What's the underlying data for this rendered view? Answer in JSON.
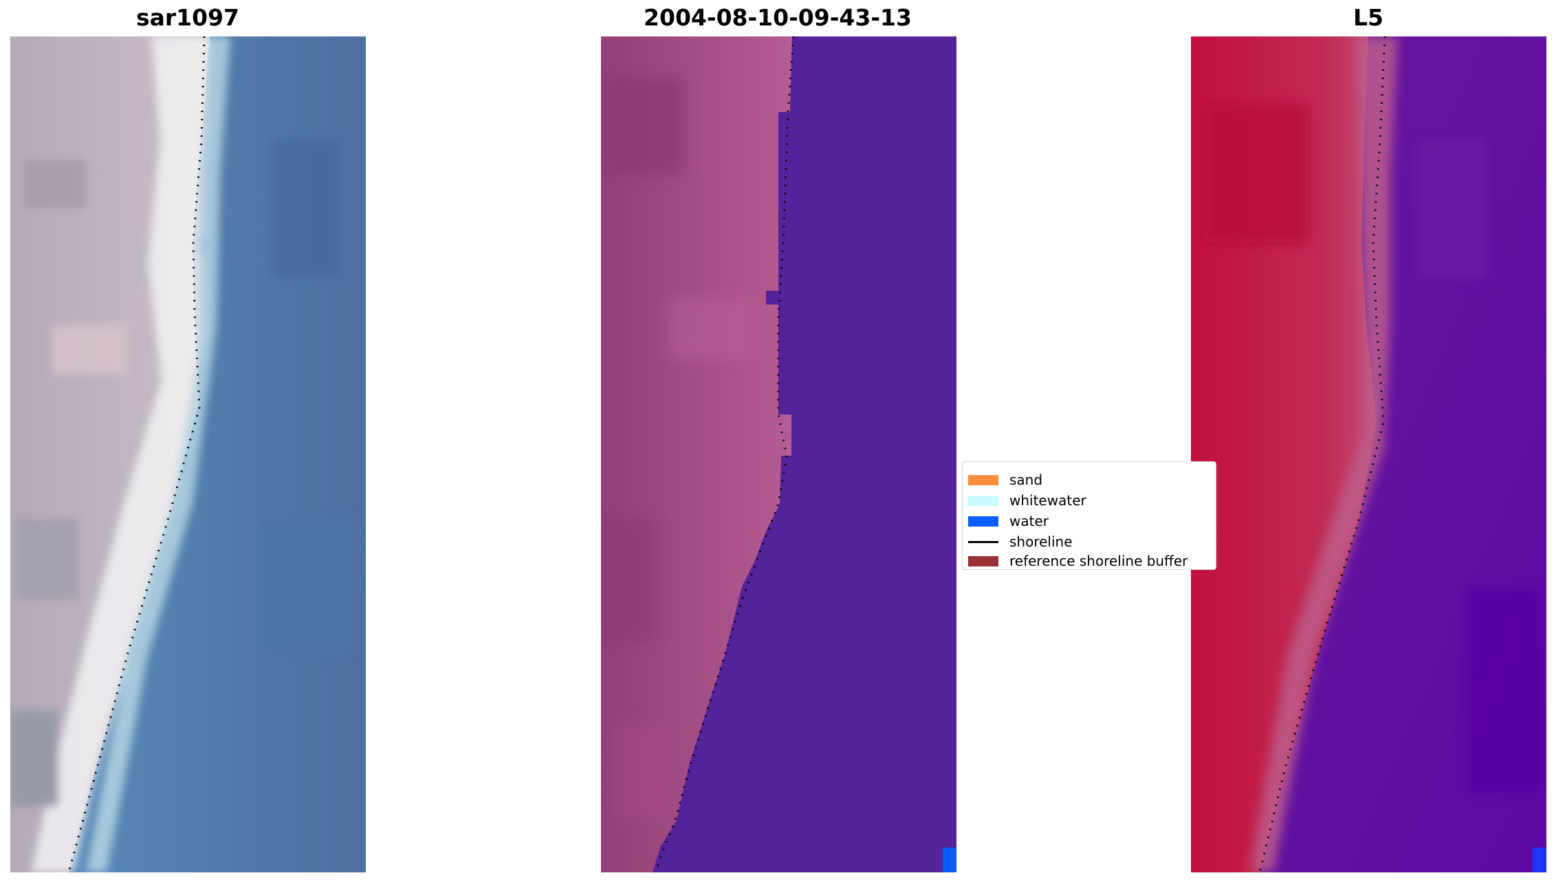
{
  "panels": [
    {
      "title": "sar1097",
      "kind": "sar"
    },
    {
      "title": "2004-08-10-09-43-13",
      "kind": "classified"
    },
    {
      "title": "L5",
      "kind": "index"
    }
  ],
  "legend": {
    "entries": [
      {
        "label": "sand",
        "type": "patch",
        "color": "#ff8c3f"
      },
      {
        "label": "whitewater",
        "type": "patch",
        "color": "#c8fbfc"
      },
      {
        "label": "water",
        "type": "patch",
        "color": "#0a5cff"
      },
      {
        "label": "shoreline",
        "type": "line",
        "color": "#000000"
      },
      {
        "label": "reference shoreline buffer",
        "type": "patch",
        "color": "#9b3035"
      }
    ]
  },
  "colors": {
    "water_class": "#54239a",
    "land_class": "#a64e86",
    "sar_water": "#4d7aa8",
    "index_land": "#c2123f",
    "index_water": "#5f109e"
  }
}
